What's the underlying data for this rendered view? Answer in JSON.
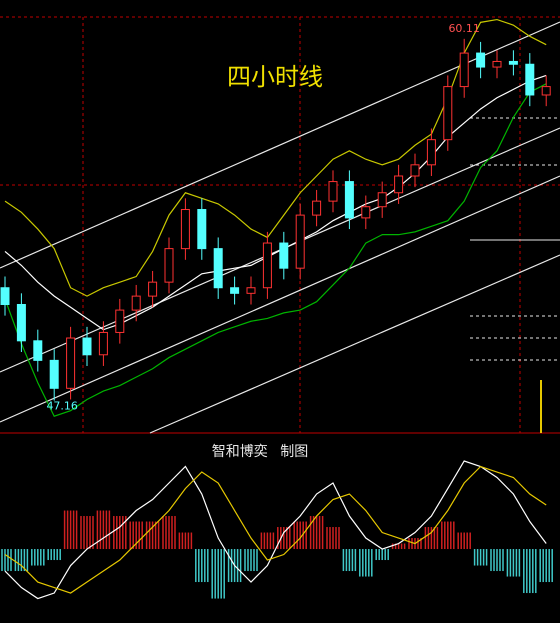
{
  "chart_data": [
    {
      "type": "candlestick",
      "title": "四小时线",
      "up_color": "#ff3232",
      "down_color": "#54ffff",
      "open": [
        51.2,
        50.6,
        49.3,
        48.6,
        47.6,
        49.4,
        48.8,
        49.6,
        50.4,
        50.9,
        51.4,
        52.6,
        54.0,
        52.6,
        51.2,
        51.0,
        51.2,
        52.8,
        51.9,
        53.8,
        54.3,
        55.0,
        53.7,
        54.1,
        54.6,
        55.2,
        55.6,
        56.5,
        58.4,
        59.6,
        59.1,
        59.3,
        59.2,
        58.1
      ],
      "high": [
        51.6,
        51.0,
        49.7,
        49.0,
        49.8,
        49.8,
        50.0,
        50.8,
        51.3,
        51.8,
        53.0,
        54.4,
        54.4,
        53.0,
        51.6,
        51.6,
        53.2,
        53.2,
        54.2,
        54.7,
        55.4,
        55.4,
        54.5,
        55.0,
        55.6,
        56.0,
        56.9,
        58.8,
        60.11,
        60.0,
        59.7,
        59.7,
        59.6,
        58.8
      ],
      "low": [
        50.2,
        48.9,
        48.2,
        47.16,
        47.2,
        48.4,
        48.4,
        49.2,
        50.0,
        50.5,
        51.0,
        52.2,
        52.2,
        50.8,
        50.6,
        50.6,
        50.8,
        51.5,
        51.5,
        53.4,
        53.9,
        53.3,
        53.3,
        53.7,
        54.2,
        54.8,
        55.2,
        56.1,
        58.0,
        58.7,
        58.7,
        58.8,
        57.7,
        57.7
      ],
      "close": [
        50.6,
        49.3,
        48.6,
        47.6,
        49.4,
        48.8,
        49.6,
        50.4,
        50.9,
        51.4,
        52.6,
        54.0,
        52.6,
        51.2,
        51.0,
        51.2,
        52.8,
        51.9,
        53.8,
        54.3,
        55.0,
        53.7,
        54.1,
        54.6,
        55.2,
        55.6,
        56.5,
        58.4,
        59.6,
        59.1,
        59.3,
        59.2,
        58.1,
        58.4
      ],
      "series": [
        {
          "color": "#c8c800",
          "values": [
            54.3,
            53.9,
            53.3,
            52.6,
            51.2,
            50.9,
            51.2,
            51.4,
            51.6,
            52.5,
            53.8,
            54.6,
            54.4,
            54.2,
            53.8,
            53.3,
            53.0,
            53.8,
            54.6,
            55.2,
            55.8,
            56.1,
            55.8,
            55.6,
            55.8,
            56.3,
            56.7,
            58.0,
            59.6,
            60.7,
            60.8,
            60.6,
            60.2,
            59.9
          ]
        },
        {
          "color": "#ffffff",
          "values": [
            52.5,
            52.0,
            51.4,
            50.9,
            50.5,
            50.1,
            49.7,
            49.9,
            50.2,
            50.5,
            50.9,
            51.3,
            51.7,
            51.8,
            51.9,
            52.0,
            52.3,
            52.6,
            52.9,
            53.2,
            53.6,
            53.9,
            54.2,
            54.4,
            54.8,
            55.3,
            55.9,
            56.6,
            57.1,
            57.6,
            58.0,
            58.3,
            58.6,
            58.8
          ]
        },
        {
          "color": "#00b400",
          "values": [
            50.8,
            49.2,
            47.8,
            46.6,
            46.8,
            47.2,
            47.5,
            47.7,
            48.0,
            48.3,
            48.7,
            49.0,
            49.3,
            49.6,
            49.8,
            50.0,
            50.1,
            50.3,
            50.4,
            50.7,
            51.3,
            51.9,
            52.8,
            53.1,
            53.1,
            53.2,
            53.4,
            53.6,
            54.3,
            55.5,
            56.1,
            57.3,
            58.2,
            58.5
          ]
        }
      ],
      "annotations": [
        60.11,
        47.16
      ],
      "ylim": [
        46,
        61.5
      ]
    },
    {
      "type": "macd",
      "title": "智和博奕 制图",
      "histogram": [
        -0.4,
        -0.4,
        -0.3,
        -0.2,
        0.7,
        0.6,
        0.7,
        0.6,
        0.5,
        0.5,
        0.6,
        0.3,
        -0.6,
        -0.9,
        -0.6,
        -0.4,
        0.3,
        0.4,
        0.5,
        0.6,
        0.4,
        -0.4,
        -0.5,
        -0.2,
        0.1,
        0.2,
        0.4,
        0.5,
        0.3,
        -0.3,
        -0.4,
        -0.5,
        -0.8,
        -0.6
      ],
      "up_color": "#d02020",
      "down_color": "#40c8c8",
      "series": [
        {
          "color": "#ffffff",
          "values": [
            -0.4,
            -0.7,
            -0.9,
            -0.8,
            -0.3,
            0.0,
            0.2,
            0.4,
            0.7,
            0.9,
            1.2,
            1.5,
            1.0,
            0.2,
            -0.3,
            -0.6,
            -0.3,
            0.3,
            0.6,
            1.0,
            1.2,
            0.6,
            0.2,
            0.0,
            0.1,
            0.3,
            0.6,
            1.1,
            1.6,
            1.5,
            1.3,
            1.0,
            0.5,
            0.1
          ]
        },
        {
          "color": "#e6c800",
          "values": [
            -0.1,
            -0.3,
            -0.6,
            -0.7,
            -0.8,
            -0.6,
            -0.4,
            -0.2,
            0.1,
            0.4,
            0.7,
            1.1,
            1.4,
            1.2,
            0.7,
            0.2,
            -0.2,
            -0.1,
            0.2,
            0.6,
            0.9,
            1.0,
            0.7,
            0.3,
            0.2,
            0.1,
            0.3,
            0.7,
            1.2,
            1.5,
            1.4,
            1.3,
            1.0,
            0.8
          ]
        }
      ],
      "ylim": [
        -1.29,
        1.8
      ]
    }
  ]
}
